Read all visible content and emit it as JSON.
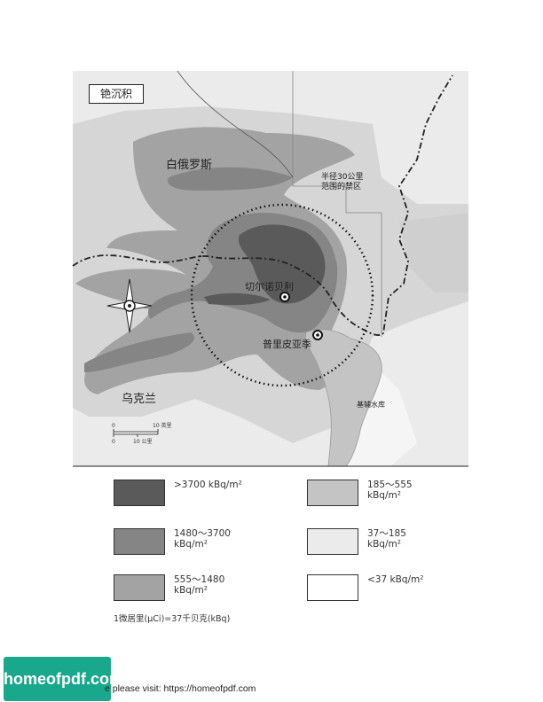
{
  "map": {
    "title": "铯沉积",
    "labels": {
      "belarus": "白俄罗斯",
      "ukraine": "乌克兰",
      "exclusion_zone": "半径30公里\n范围的禁区",
      "chernobyl": "切尔诺贝利",
      "pripyat": "普里皮亚季",
      "reservoir": "基辅水库"
    },
    "scale": {
      "top_zero": "0",
      "top_end": "10 英里",
      "bottom_zero": "0",
      "bottom_end": "10 公里"
    },
    "compass_icon": "compass-rose-icon",
    "colors": {
      "level1": "#5a5a5a",
      "level2": "#858585",
      "level3": "#a3a3a3",
      "level4": "#c4c4c4",
      "level5": "#ebebeb",
      "level6": "#ffffff"
    }
  },
  "legend": [
    {
      "color": "#5a5a5a",
      "label": ">3700 kBq/m²"
    },
    {
      "color": "#c4c4c4",
      "label": "185～555\nkBq/m²"
    },
    {
      "color": "#858585",
      "label": "1480～3700\nkBq/m²"
    },
    {
      "color": "#ebebeb",
      "label": "37～185\nkBq/m²"
    },
    {
      "color": "#a3a3a3",
      "label": "555～1480\nkBq/m²"
    },
    {
      "color": "#ffffff",
      "label": "<37 kBq/m²"
    }
  ],
  "note": "1微居里(μCi)=37千贝克(kBq)",
  "watermark": "homeofpdf.com",
  "footer": "e please visit: https://homeofpdf.com"
}
